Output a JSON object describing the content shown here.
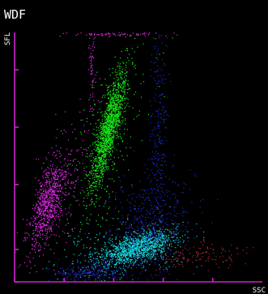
{
  "chart_data": {
    "type": "scatter",
    "title": "WDF",
    "xlabel": "SSC",
    "ylabel": "SFL",
    "xlim": [
      0,
      100
    ],
    "ylim": [
      0,
      100
    ],
    "grid": false,
    "legend": "none",
    "colors": {
      "background": "#000000",
      "axis": "#d020d0",
      "text": "#ffffff"
    },
    "x_ticks": [
      0,
      20,
      40,
      60,
      80
    ],
    "y_ticks": [
      0,
      13,
      39,
      62,
      85
    ],
    "series": [
      {
        "color": "#14e614",
        "clusters": [
          {
            "cx": 38,
            "cy": 62,
            "sx": 3.6,
            "sy": 12,
            "corr": 0.84,
            "n": 1400
          },
          {
            "cx": 36,
            "cy": 55,
            "sx": 9,
            "sy": 20,
            "corr": 0.6,
            "n": 300
          }
        ]
      },
      {
        "color": "#e028e6",
        "clusters": [
          {
            "cx": 13,
            "cy": 31,
            "sx": 3.6,
            "sy": 9,
            "corr": 0.62,
            "n": 700
          },
          {
            "cx": 20,
            "cy": 40,
            "sx": 6,
            "sy": 16,
            "corr": 0.55,
            "n": 180
          },
          {
            "cx": 40,
            "cy": 99.5,
            "sx": 10,
            "sy": 0.5,
            "corr": 0,
            "n": 80
          },
          {
            "cx": 31,
            "cy": 88,
            "sx": 0.6,
            "sy": 10,
            "corr": 0,
            "n": 60
          }
        ]
      },
      {
        "color": "#14d7d7",
        "clusters": [
          {
            "cx": 50,
            "cy": 14,
            "sx": 7,
            "sy": 3.2,
            "corr": 0.55,
            "n": 1100
          },
          {
            "cx": 43,
            "cy": 12,
            "sx": 13,
            "sy": 6,
            "corr": 0.4,
            "n": 350
          }
        ]
      },
      {
        "color": "#1e28c8",
        "clusters": [
          {
            "cx": 54,
            "cy": 22,
            "sx": 9,
            "sy": 11,
            "corr": 0.3,
            "n": 500
          },
          {
            "cx": 31,
            "cy": 4,
            "sx": 7,
            "sy": 2.5,
            "corr": 0.2,
            "n": 220
          },
          {
            "cx": 58,
            "cy": 55,
            "sx": 1.8,
            "sy": 28,
            "corr": 0,
            "n": 300
          }
        ]
      },
      {
        "color": "#b42828",
        "clusters": [
          {
            "cx": 75,
            "cy": 11,
            "sx": 9,
            "sy": 2.6,
            "corr": 0.3,
            "n": 130
          }
        ]
      }
    ]
  }
}
